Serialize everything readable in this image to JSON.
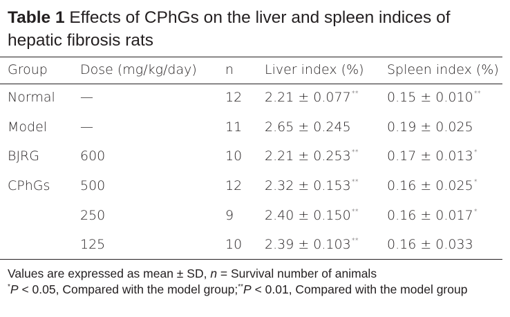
{
  "caption": {
    "label": "Table 1",
    "text": "Effects of CPhGs on the liver and spleen indices of hepatic fibrosis rats"
  },
  "columns": {
    "group": "Group",
    "dose": "Dose (mg/kg/day)",
    "n": "n",
    "liver": "Liver index (%)",
    "spleen": "Spleen index (%)"
  },
  "rows": [
    {
      "group": "Normal",
      "dose": "—",
      "n": "12",
      "liver": "2.21 ± 0.077",
      "liver_sig": "**",
      "spleen": "0.15 ± 0.010",
      "spleen_sig": "**"
    },
    {
      "group": "Model",
      "dose": "—",
      "n": "11",
      "liver": "2.65 ± 0.245",
      "liver_sig": "",
      "spleen": "0.19 ± 0.025",
      "spleen_sig": ""
    },
    {
      "group": "BJRG",
      "dose": "600",
      "n": "10",
      "liver": "2.21 ± 0.253",
      "liver_sig": "**",
      "spleen": "0.17 ± 0.013",
      "spleen_sig": "*"
    },
    {
      "group": "CPhGs",
      "dose": "500",
      "n": "12",
      "liver": "2.32 ± 0.153",
      "liver_sig": "**",
      "spleen": "0.16 ± 0.025",
      "spleen_sig": "*"
    },
    {
      "group": "",
      "dose": "250",
      "n": "9",
      "liver": "2.40 ± 0.150",
      "liver_sig": "**",
      "spleen": "0.16 ± 0.017",
      "spleen_sig": "*"
    },
    {
      "group": "",
      "dose": "125",
      "n": "10",
      "liver": "2.39 ± 0.103",
      "liver_sig": "**",
      "spleen": "0.16 ± 0.033",
      "spleen_sig": ""
    }
  ],
  "footnote": {
    "line1_a": "Values are expressed as mean ± SD, ",
    "line1_n": "n",
    "line1_b": " = Survival number of animals",
    "sig1_mark": "*",
    "sig1_p": "P",
    "sig1_text": " < 0.05, Compared with the model group;",
    "sig2_mark": "**",
    "sig2_p": "P",
    "sig2_text": " < 0.01, Compared with the model group"
  }
}
